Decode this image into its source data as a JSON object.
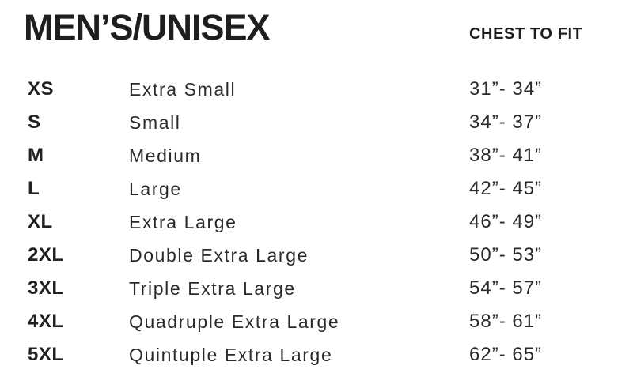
{
  "header": {
    "title": "MEN’S/UNISEX",
    "column_header": "CHEST TO FIT"
  },
  "colors": {
    "text": "#221f21",
    "background": "#ffffff"
  },
  "chart_data": {
    "type": "table",
    "title": "MEN’S/UNISEX",
    "columns": [
      "size_code",
      "size_name",
      "chest_to_fit"
    ],
    "rows": [
      {
        "code": "XS",
        "name": "Extra Small",
        "range": "31”- 34”"
      },
      {
        "code": "S",
        "name": "Small",
        "range": "34”- 37”"
      },
      {
        "code": "M",
        "name": "Medium",
        "range": "38”- 41”"
      },
      {
        "code": "L",
        "name": "Large",
        "range": "42”- 45”"
      },
      {
        "code": "XL",
        "name": "Extra Large",
        "range": "46”- 49”"
      },
      {
        "code": "2XL",
        "name": "Double Extra Large",
        "range": "50”- 53”"
      },
      {
        "code": "3XL",
        "name": "Triple Extra Large",
        "range": "54”- 57”"
      },
      {
        "code": "4XL",
        "name": "Quadruple Extra Large",
        "range": "58”- 61”"
      },
      {
        "code": "5XL",
        "name": "Quintuple Extra Large",
        "range": "62”- 65”"
      }
    ]
  }
}
